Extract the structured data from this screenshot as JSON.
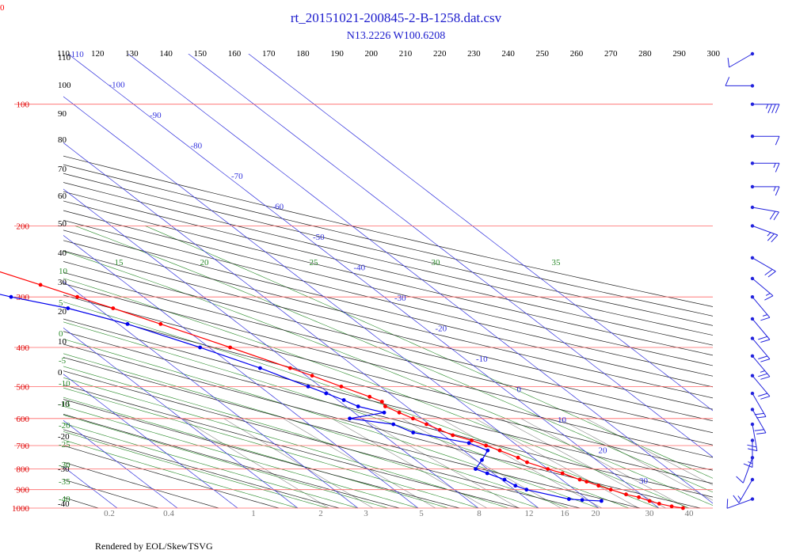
{
  "chart_data": {
    "type": "line",
    "title": "rt_20151021-200845-2-B-1258.dat.csv",
    "subtitle": "N13.2226 W100.6208",
    "corner_label": "0",
    "credit": "Rendered by EOL/SkewTSVG",
    "pressure_levels": [
      100,
      200,
      300,
      400,
      500,
      600,
      700,
      800,
      900,
      1000
    ],
    "top_ticks": [
      110,
      120,
      130,
      140,
      150,
      160,
      170,
      180,
      190,
      200,
      210,
      220,
      230,
      240,
      250,
      260,
      270,
      280,
      290,
      300
    ],
    "left_black_labels": [
      "110",
      "100",
      "90",
      "80",
      "70",
      "60",
      "50",
      "40",
      "30",
      "20",
      "10",
      "0",
      "-10",
      "-20",
      "-30",
      "-40"
    ],
    "left_green_labels": [
      "10",
      "5",
      "0",
      "-5",
      "-10",
      "-15",
      "-20",
      "-25",
      "-30",
      "-35",
      "-40"
    ],
    "isotherm_labels": [
      "-110",
      "-100",
      "-90",
      "-80",
      "-70",
      "-60",
      "-50",
      "-40",
      "-30",
      "-20",
      "-10",
      "0",
      "10",
      "20",
      "30"
    ],
    "moist_adiabat_labels": [
      "15",
      "20",
      "25",
      "30",
      "35"
    ],
    "mixing_ratio_labels": [
      "0.2",
      "0.4",
      "1",
      "2",
      "3",
      "5",
      "8",
      "12",
      "16",
      "20",
      "30",
      "40"
    ],
    "temperature_profile": {
      "name": "Temperature",
      "color": "#ff0000",
      "points": [
        {
          "p": 1000,
          "t": 24.0
        },
        {
          "p": 990,
          "t": 22.5
        },
        {
          "p": 975,
          "t": 21.0
        },
        {
          "p": 960,
          "t": 20.0
        },
        {
          "p": 940,
          "t": 19.0
        },
        {
          "p": 925,
          "t": 17.5
        },
        {
          "p": 900,
          "t": 16.0
        },
        {
          "p": 880,
          "t": 14.8
        },
        {
          "p": 860,
          "t": 13.7
        },
        {
          "p": 850,
          "t": 13.0
        },
        {
          "p": 820,
          "t": 11.5
        },
        {
          "p": 800,
          "t": 10.0
        },
        {
          "p": 770,
          "t": 8.0
        },
        {
          "p": 750,
          "t": 7.5
        },
        {
          "p": 720,
          "t": 6.0
        },
        {
          "p": 700,
          "t": 4.8
        },
        {
          "p": 680,
          "t": 3.5
        },
        {
          "p": 660,
          "t": 1.5
        },
        {
          "p": 640,
          "t": 0.5
        },
        {
          "p": 620,
          "t": -0.5
        },
        {
          "p": 600,
          "t": -1.5
        },
        {
          "p": 580,
          "t": -2.5
        },
        {
          "p": 560,
          "t": -3.5
        },
        {
          "p": 545,
          "t": -3.0
        },
        {
          "p": 530,
          "t": -4.0
        },
        {
          "p": 500,
          "t": -6.5
        },
        {
          "p": 470,
          "t": -9.0
        },
        {
          "p": 450,
          "t": -11.0
        },
        {
          "p": 400,
          "t": -16.5
        },
        {
          "p": 350,
          "t": -23.0
        },
        {
          "p": 320,
          "t": -27.5
        },
        {
          "p": 300,
          "t": -31.0
        },
        {
          "p": 280,
          "t": -34.5
        },
        {
          "p": 250,
          "t": -40.5
        },
        {
          "p": 220,
          "t": -47.0
        },
        {
          "p": 200,
          "t": -52.5
        },
        {
          "p": 175,
          "t": -58.5
        },
        {
          "p": 150,
          "t": -65.5
        },
        {
          "p": 130,
          "t": -71.5
        },
        {
          "p": 115,
          "t": -76.5
        },
        {
          "p": 105,
          "t": -79.5
        },
        {
          "p": 100,
          "t": -81.0
        },
        {
          "p": 95,
          "t": -80.5
        },
        {
          "p": 90,
          "t": -78.5
        },
        {
          "p": 86,
          "t": -74.0
        },
        {
          "p": 83,
          "t": -70.0
        },
        {
          "p": 81,
          "t": -66.0
        },
        {
          "p": 78,
          "t": -63.0
        },
        {
          "p": 75,
          "t": -60.0
        }
      ]
    },
    "dewpoint_profile": {
      "name": "Dew point",
      "color": "#0000ee",
      "points": [
        {
          "p": 960,
          "t": 12.0
        },
        {
          "p": 955,
          "t": 9.0
        },
        {
          "p": 950,
          "t": 7.0
        },
        {
          "p": 900,
          "t": 2.0
        },
        {
          "p": 880,
          "t": 1.0
        },
        {
          "p": 850,
          "t": 0.5
        },
        {
          "p": 820,
          "t": -1.0
        },
        {
          "p": 800,
          "t": -2.0
        },
        {
          "p": 760,
          "t": 1.0
        },
        {
          "p": 720,
          "t": 4.0
        },
        {
          "p": 690,
          "t": 2.5
        },
        {
          "p": 650,
          "t": -4.5
        },
        {
          "p": 620,
          "t": -6.0
        },
        {
          "p": 600,
          "t": -12.0
        },
        {
          "p": 580,
          "t": -5.0
        },
        {
          "p": 560,
          "t": -8.0
        },
        {
          "p": 540,
          "t": -9.0
        },
        {
          "p": 520,
          "t": -10.5
        },
        {
          "p": 500,
          "t": -12.0
        },
        {
          "p": 450,
          "t": -16.0
        },
        {
          "p": 400,
          "t": -21.5
        },
        {
          "p": 350,
          "t": -28.5
        },
        {
          "p": 320,
          "t": -35.0
        },
        {
          "p": 300,
          "t": -42.0
        },
        {
          "p": 280,
          "t": -48.0
        },
        {
          "p": 265,
          "t": -53.0
        },
        {
          "p": 255,
          "t": -59.0
        },
        {
          "p": 245,
          "t": -66.0
        },
        {
          "p": 230,
          "t": -78.0
        },
        {
          "p": 220,
          "t": -88.0
        },
        {
          "p": 210,
          "t": -97.0
        },
        {
          "p": 200,
          "t": -106.0
        }
      ]
    },
    "wind_barbs": [
      {
        "p": 75,
        "speed_kt": 10,
        "dir_deg": 240
      },
      {
        "p": 90,
        "speed_kt": 10,
        "dir_deg": 270
      },
      {
        "p": 100,
        "speed_kt": 35,
        "dir_deg": 90
      },
      {
        "p": 120,
        "speed_kt": 10,
        "dir_deg": 90
      },
      {
        "p": 140,
        "speed_kt": 15,
        "dir_deg": 90
      },
      {
        "p": 160,
        "speed_kt": 15,
        "dir_deg": 90
      },
      {
        "p": 180,
        "speed_kt": 20,
        "dir_deg": 100
      },
      {
        "p": 200,
        "speed_kt": 25,
        "dir_deg": 110
      },
      {
        "p": 240,
        "speed_kt": 20,
        "dir_deg": 120
      },
      {
        "p": 270,
        "speed_kt": 15,
        "dir_deg": 130
      },
      {
        "p": 300,
        "speed_kt": 15,
        "dir_deg": 140
      },
      {
        "p": 340,
        "speed_kt": 20,
        "dir_deg": 140
      },
      {
        "p": 380,
        "speed_kt": 20,
        "dir_deg": 140
      },
      {
        "p": 420,
        "speed_kt": 25,
        "dir_deg": 140
      },
      {
        "p": 470,
        "speed_kt": 20,
        "dir_deg": 140
      },
      {
        "p": 520,
        "speed_kt": 20,
        "dir_deg": 150
      },
      {
        "p": 570,
        "speed_kt": 20,
        "dir_deg": 150
      },
      {
        "p": 620,
        "speed_kt": 20,
        "dir_deg": 170
      },
      {
        "p": 680,
        "speed_kt": 15,
        "dir_deg": 180
      },
      {
        "p": 750,
        "speed_kt": 10,
        "dir_deg": 200
      },
      {
        "p": 850,
        "speed_kt": 15,
        "dir_deg": 210
      },
      {
        "p": 950,
        "speed_kt": 10,
        "dir_deg": 250
      }
    ],
    "colors": {
      "isobar": "#ff6666",
      "isotherm": "#3333dd",
      "dry_adiabat": "#222222",
      "moist_adiabat": "#2a8a2a",
      "mixing_ratio": "#888888",
      "title": "#1a1acc",
      "wind": "#2222dd"
    }
  }
}
